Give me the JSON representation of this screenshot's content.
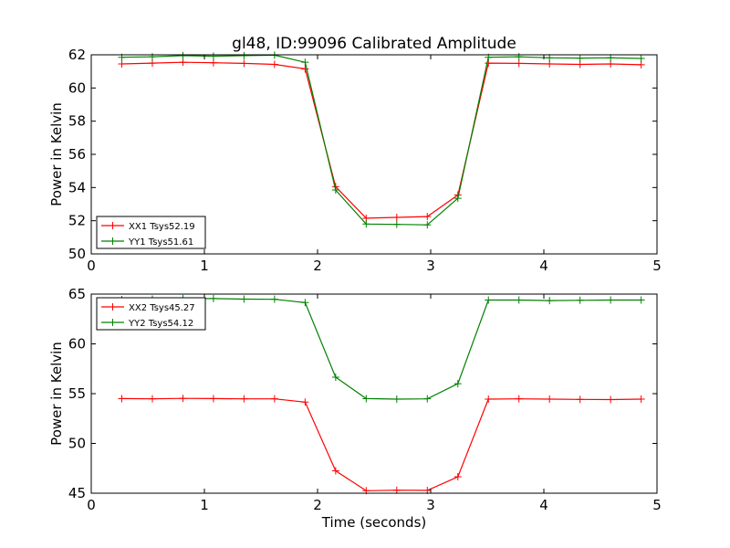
{
  "figure": {
    "title": "gl48, ID:99096 Calibrated Amplitude"
  },
  "chart_data": [
    {
      "type": "line",
      "title": "gl48, ID:99096 Calibrated Amplitude",
      "xlabel": "",
      "ylabel": "Power in Kelvin",
      "xlim": [
        0,
        5
      ],
      "ylim": [
        50,
        62
      ],
      "xticks": [
        0,
        1,
        2,
        3,
        4,
        5
      ],
      "yticks": [
        50,
        52,
        54,
        56,
        58,
        60,
        62
      ],
      "grid": false,
      "legend_position": "lower-left",
      "x": [
        0.27,
        0.54,
        0.81,
        1.08,
        1.35,
        1.62,
        1.89,
        2.16,
        2.43,
        2.7,
        2.97,
        3.24,
        3.51,
        3.78,
        4.05,
        4.32,
        4.59,
        4.86
      ],
      "series": [
        {
          "name": "XX1 Tsys52.19",
          "color": "#ff0000",
          "values": [
            61.45,
            61.5,
            61.55,
            61.52,
            61.48,
            61.42,
            61.15,
            54.05,
            52.15,
            52.2,
            52.25,
            53.55,
            61.5,
            61.48,
            61.45,
            61.42,
            61.45,
            61.4
          ]
        },
        {
          "name": "YY1 Tsys51.61",
          "color": "#008000",
          "values": [
            61.85,
            61.88,
            61.95,
            61.92,
            61.95,
            61.98,
            61.55,
            53.85,
            51.8,
            51.78,
            51.75,
            53.35,
            61.85,
            61.88,
            61.82,
            61.8,
            61.82,
            61.78
          ]
        }
      ]
    },
    {
      "type": "line",
      "title": "",
      "xlabel": "Time (seconds)",
      "ylabel": "Power in Kelvin",
      "xlim": [
        0,
        5
      ],
      "ylim": [
        45,
        65
      ],
      "xticks": [
        0,
        1,
        2,
        3,
        4,
        5
      ],
      "yticks": [
        45,
        50,
        55,
        60,
        65
      ],
      "grid": false,
      "legend_position": "upper-left",
      "x": [
        0.27,
        0.54,
        0.81,
        1.08,
        1.35,
        1.62,
        1.89,
        2.16,
        2.43,
        2.7,
        2.97,
        3.24,
        3.51,
        3.78,
        4.05,
        4.32,
        4.59,
        4.86
      ],
      "series": [
        {
          "name": "XX2 Tsys45.27",
          "color": "#ff0000",
          "values": [
            54.5,
            54.48,
            54.52,
            54.5,
            54.48,
            54.48,
            54.15,
            47.25,
            45.25,
            45.3,
            45.28,
            46.65,
            54.45,
            54.48,
            54.45,
            54.42,
            54.4,
            54.45
          ]
        },
        {
          "name": "YY2 Tsys54.12",
          "color": "#008000",
          "values": [
            64.45,
            64.5,
            64.55,
            64.55,
            64.5,
            64.48,
            64.15,
            56.65,
            54.5,
            54.45,
            54.48,
            56.0,
            64.4,
            64.4,
            64.35,
            64.38,
            64.4,
            64.4
          ]
        }
      ]
    }
  ]
}
